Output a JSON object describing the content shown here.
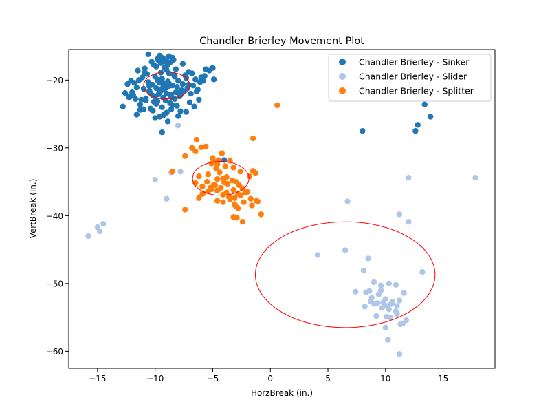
{
  "chart_data": {
    "type": "scatter",
    "title": "Chandler Brierley Movement Plot",
    "xlabel": "HorzBreak (in.)",
    "ylabel": "VertBreak (in.)",
    "xlim": [
      -17.5,
      19.5
    ],
    "ylim": [
      -62.5,
      -15.5
    ],
    "xticks": [
      -15,
      -10,
      -5,
      0,
      5,
      10,
      15
    ],
    "yticks": [
      -60,
      -50,
      -40,
      -30,
      -20
    ],
    "xtick_labels": [
      "−15",
      "−10",
      "−5",
      "0",
      "5",
      "10",
      "15"
    ],
    "ytick_labels": [
      "−60",
      "−50",
      "−40",
      "−30",
      "−20"
    ],
    "grid": false,
    "legend_position": "top-right",
    "series": [
      {
        "name": "Chandler Brierley - Sinker",
        "color": "#1f77b4",
        "x": [
          -9.3,
          -8.8,
          -9.6,
          -9.0,
          -8.5,
          -9.9,
          -10.2,
          -8.2,
          -9.4,
          -8.9,
          -10.5,
          -9.1,
          -8.6,
          -9.8,
          -10.0,
          -8.3,
          -9.5,
          -9.2,
          -8.7,
          -10.3,
          -9.7,
          -8.4,
          -9.0,
          -10.1,
          -8.8,
          -9.3,
          -9.6,
          -8.5,
          -10.4,
          -9.2,
          -8.1,
          -9.9,
          -10.6,
          -8.0,
          -9.4,
          -8.9,
          -10.8,
          -7.8,
          -9.5,
          -8.6,
          -11.0,
          -7.6,
          -9.1,
          -10.2,
          -8.3,
          -11.2,
          -7.5,
          -9.7,
          -10.5,
          -8.1,
          -11.4,
          -7.3,
          -9.0,
          -10.9,
          -7.9,
          -11.6,
          -7.1,
          -9.8,
          -10.7,
          -7.7,
          -11.8,
          -6.9,
          -9.3,
          -11.3,
          -7.4,
          -12.0,
          -6.7,
          -9.6,
          -11.5,
          -7.2,
          -12.2,
          -6.5,
          -8.8,
          -10.4,
          -8.4,
          -11.1,
          -7.0,
          -9.9,
          -12.4,
          -6.3,
          -9.2,
          -11.7,
          -6.8,
          -12.6,
          -6.1,
          -8.2,
          -10.0,
          -7.6,
          -11.9,
          -6.6,
          -9.5,
          -12.1,
          -6.4,
          -10.3,
          -7.8,
          -11.3,
          -6.2,
          -9.4,
          -10.8,
          -7.1,
          -5.6,
          -5.3,
          -5.0,
          -5.7,
          -4.9,
          -9.0,
          -9.8,
          -8.7,
          -10.6,
          -8.5,
          -12.8,
          -11.0,
          -9.3,
          -8.0,
          -10.2,
          -6.0,
          -5.8,
          -12.3,
          -11.6,
          -7.3,
          -9.6,
          -10.9,
          -8.9,
          -10.1,
          -8.3,
          -9.7,
          -9.2,
          -8.6,
          -10.5,
          -9.0,
          -8.8,
          -9.5,
          -9.4,
          -8.1,
          -10.0,
          -9.1
        ],
        "y": [
          -21.0,
          -20.5,
          -21.5,
          -22.0,
          -20.8,
          -21.2,
          -22.3,
          -21.8,
          -19.8,
          -20.2,
          -21.6,
          -23.0,
          -22.5,
          -20.0,
          -19.5,
          -22.8,
          -18.9,
          -21.4,
          -23.4,
          -20.7,
          -22.1,
          -19.2,
          -18.5,
          -23.2,
          -19.0,
          -22.6,
          -20.4,
          -23.7,
          -21.9,
          -18.2,
          -21.0,
          -23.5,
          -20.3,
          -20.1,
          -24.0,
          -17.8,
          -22.7,
          -22.2,
          -17.5,
          -24.3,
          -21.3,
          -20.6,
          -17.3,
          -24.5,
          -19.4,
          -22.9,
          -21.7,
          -17.1,
          -20.9,
          -23.8,
          -20.0,
          -19.7,
          -24.8,
          -18.3,
          -22.4,
          -21.1,
          -18.8,
          -23.1,
          -19.1,
          -21.5,
          -20.4,
          -22.0,
          -16.8,
          -23.6,
          -19.3,
          -21.8,
          -20.8,
          -25.4,
          -18.6,
          -21.2,
          -22.5,
          -19.9,
          -16.5,
          -24.2,
          -17.0,
          -19.6,
          -23.3,
          -18.0,
          -20.6,
          -21.4,
          -25.0,
          -22.8,
          -19.0,
          -21.9,
          -20.3,
          -18.4,
          -25.6,
          -17.6,
          -22.2,
          -23.9,
          -16.6,
          -20.1,
          -21.7,
          -17.3,
          -24.6,
          -24.4,
          -22.9,
          -27.7,
          -23.0,
          -20.7,
          -18.4,
          -18.6,
          -18.2,
          -19.4,
          -19.9,
          -17.2,
          -16.9,
          -17.4,
          -16.2,
          -16.7,
          -23.9,
          -24.3,
          -25.2,
          -25.3,
          -20.7,
          -19.6,
          -20.1,
          -22.5,
          -25.1,
          -24.7,
          -16.4,
          -18.9,
          -26.1,
          -17.8,
          -19.5,
          -20.0,
          -21.3,
          -22.1,
          -20.6,
          -21.1,
          -20.9,
          -21.6,
          -20.2,
          -21.8,
          -22.4,
          -20.5
        ],
        "outliers_x": [
          -4.0,
          8.0,
          12.6,
          12.8,
          13.4,
          13.9
        ],
        "outliers_y": [
          -31.8,
          -27.5,
          -27.5,
          -26.6,
          -23.6,
          -25.4
        ]
      },
      {
        "name": "Chandler Brierley - Slider",
        "color": "#aec7e8",
        "x": [
          -15.8,
          -15.0,
          -14.8,
          -14.5,
          -10.0,
          -9.0,
          -8.0,
          -7.8,
          -8.6,
          6.7,
          11.2,
          12.0,
          12.0,
          17.8,
          4.1,
          6.5,
          8.5,
          8.1,
          7.4,
          8.6,
          9.0,
          9.6,
          10.3,
          10.9,
          11.6,
          13.2,
          8.3,
          8.8,
          9.4,
          10.0,
          10.6,
          11.2,
          8.2,
          8.7,
          9.3,
          9.9,
          10.5,
          11.0,
          9.0,
          9.7,
          10.3,
          10.9,
          9.2,
          10.1,
          11.0,
          11.8,
          10.0,
          11.5,
          10.2,
          11.2,
          9.6,
          10.6,
          9.8,
          10.4,
          11.3,
          10.2
        ],
        "y": [
          -43.0,
          -41.7,
          -42.3,
          -41.2,
          -34.7,
          -37.5,
          -26.7,
          -33.5,
          -33.6,
          -37.9,
          -39.8,
          -40.9,
          -34.4,
          -34.4,
          -45.8,
          -45.1,
          -46.3,
          -48.1,
          -51.2,
          -51.1,
          -49.8,
          -50.3,
          -50.0,
          -50.2,
          -51.4,
          -48.3,
          -51.3,
          -52.1,
          -51.6,
          -52.3,
          -52.9,
          -52.5,
          -53.4,
          -52.6,
          -52.9,
          -53.2,
          -53.0,
          -53.3,
          -53.0,
          -53.6,
          -53.8,
          -54.1,
          -54.8,
          -54.9,
          -54.5,
          -55.4,
          -56.5,
          -55.9,
          -58.3,
          -60.4,
          -51.0,
          -52.7,
          -52.8,
          -55.0,
          -56.0,
          -53.3
        ]
      },
      {
        "name": "Chandler Brierley - Splitter",
        "color": "#ff7f0e",
        "x": [
          0.6,
          -1.5,
          -6.4,
          -6.0,
          -5.6,
          -6.8,
          -7.4,
          -5.0,
          -4.9,
          -4.2,
          -4.5,
          -3.9,
          -3.5,
          -3.2,
          -2.6,
          -1.5,
          -1.8,
          -1.3,
          -4.7,
          -5.1,
          -4.4,
          -5.4,
          -4.1,
          -3.8,
          -3.3,
          -4.9,
          -4.6,
          -4.0,
          -3.0,
          -2.7,
          -6.2,
          -6.5,
          -5.9,
          -5.5,
          -5.2,
          -4.8,
          -4.3,
          -3.7,
          -3.2,
          -2.8,
          -2.4,
          -5.8,
          -4.6,
          -4.1,
          -3.6,
          -3.1,
          -2.6,
          -2.2,
          -1.7,
          -1.2,
          -5.9,
          -6.2,
          -5.4,
          -4.6,
          -4.1,
          -3.5,
          -3.1,
          -2.8,
          -2.3,
          -1.6,
          -1.1,
          -3.2,
          -2.9,
          -7.4,
          -2.4,
          -0.8,
          -8.5,
          -6.5,
          -3.0,
          -4.6,
          -2.0,
          -5.1,
          -3.8
        ],
        "y": [
          -23.7,
          -28.6,
          -28.8,
          -29.9,
          -29.8,
          -30.0,
          -31.2,
          -31.5,
          -32.0,
          -30.8,
          -31.8,
          -32.7,
          -31.9,
          -32.9,
          -33.5,
          -33.4,
          -34.2,
          -33.7,
          -33.0,
          -32.3,
          -33.6,
          -33.9,
          -34.5,
          -34.3,
          -34.8,
          -35.4,
          -34.6,
          -35.1,
          -35.0,
          -35.5,
          -34.2,
          -35.2,
          -35.7,
          -35.0,
          -35.9,
          -35.5,
          -35.9,
          -35.3,
          -36.2,
          -36.8,
          -36.0,
          -36.7,
          -36.3,
          -36.9,
          -37.2,
          -37.4,
          -37.0,
          -36.6,
          -37.5,
          -37.8,
          -36.8,
          -37.4,
          -36.4,
          -37.8,
          -38.0,
          -37.6,
          -38.3,
          -38.9,
          -38.0,
          -38.5,
          -37.9,
          -40.2,
          -40.3,
          -39.1,
          -40.9,
          -39.8,
          -33.5,
          -30.5,
          -38.6,
          -32.4,
          -36.5,
          -36.1,
          -36.6
        ]
      }
    ],
    "ellipses": [
      {
        "cx": -9.0,
        "cy": -20.8,
        "rx": 2.0,
        "ry": 2.0,
        "color": "#ff0000"
      },
      {
        "cx": -4.3,
        "cy": -34.5,
        "rx": 2.45,
        "ry": 2.5,
        "color": "#ff0000"
      },
      {
        "cx": 6.5,
        "cy": -48.7,
        "rx": 7.8,
        "ry": 7.8,
        "color": "#ff0000"
      }
    ]
  }
}
